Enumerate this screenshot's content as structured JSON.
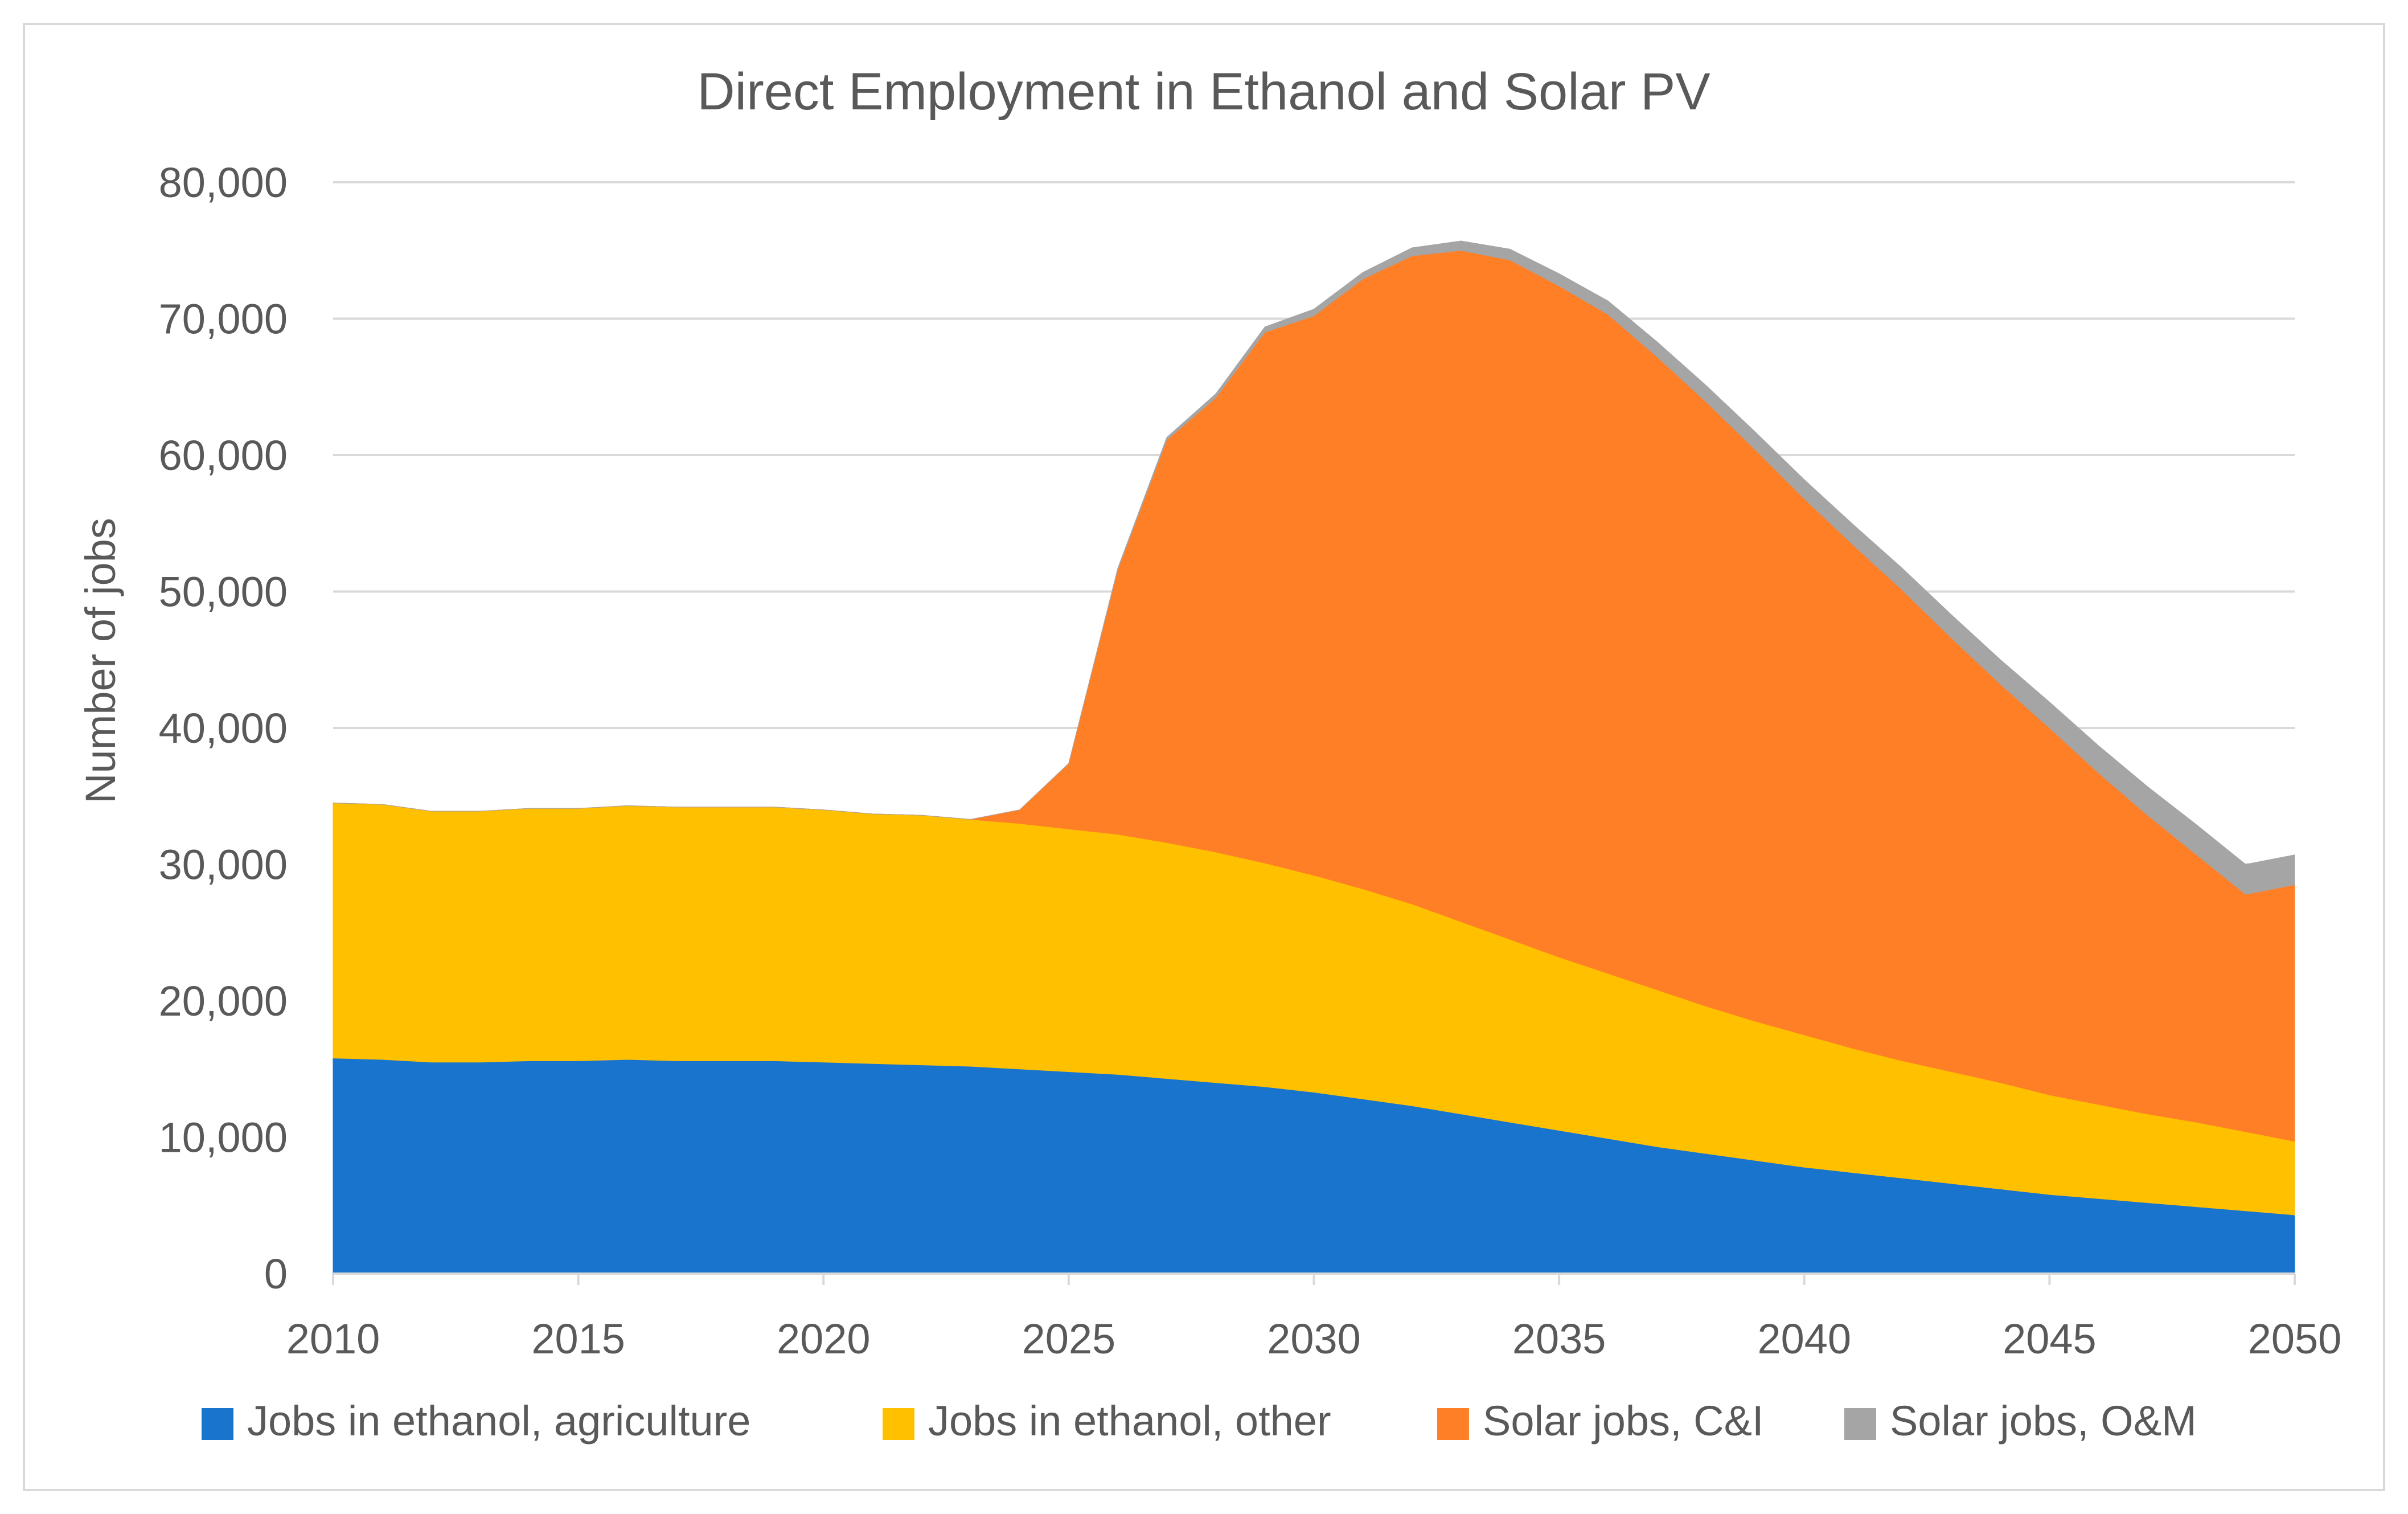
{
  "chart_data": {
    "type": "area",
    "stacked": true,
    "title": "Direct Employment in Ethanol and Solar PV",
    "xlabel": "",
    "ylabel": "Number of jobs",
    "xlim": [
      2010,
      2050
    ],
    "ylim": [
      0,
      80000
    ],
    "x_ticks": [
      "2010",
      "2015",
      "2020",
      "2025",
      "2030",
      "2035",
      "2040",
      "2045",
      "2050"
    ],
    "y_ticks": [
      "0",
      "10,000",
      "20,000",
      "30,000",
      "40,000",
      "50,000",
      "60,000",
      "70,000",
      "80,000"
    ],
    "grid": true,
    "legend_position": "bottom",
    "x": [
      2010,
      2011,
      2012,
      2013,
      2014,
      2015,
      2016,
      2017,
      2018,
      2019,
      2020,
      2021,
      2022,
      2023,
      2024,
      2025,
      2026,
      2027,
      2028,
      2029,
      2030,
      2031,
      2032,
      2033,
      2034,
      2035,
      2036,
      2037,
      2038,
      2039,
      2040,
      2041,
      2042,
      2043,
      2044,
      2045,
      2046,
      2047,
      2048,
      2049,
      2050
    ],
    "series": [
      {
        "name": "Jobs in ethanol, agriculture",
        "color": "#1874CD",
        "values": [
          15800,
          15700,
          15500,
          15500,
          15600,
          15600,
          15700,
          15600,
          15600,
          15600,
          15500,
          15400,
          15300,
          15200,
          15000,
          14800,
          14600,
          14300,
          14000,
          13700,
          13300,
          12800,
          12300,
          11700,
          11100,
          10500,
          9900,
          9300,
          8800,
          8300,
          7800,
          7400,
          7000,
          6600,
          6200,
          5800,
          5500,
          5200,
          4900,
          4600,
          4300
        ]
      },
      {
        "name": "Jobs in ethanol, other",
        "color": "#FFC000",
        "values": [
          18700,
          18700,
          18400,
          18400,
          18500,
          18500,
          18600,
          18600,
          18600,
          18600,
          18500,
          18300,
          18300,
          18100,
          18000,
          17800,
          17600,
          17300,
          16900,
          16400,
          15900,
          15400,
          14800,
          14100,
          13400,
          12700,
          12100,
          11500,
          10800,
          10200,
          9700,
          9100,
          8600,
          8200,
          7800,
          7300,
          6900,
          6500,
          6200,
          5800,
          5400
        ]
      },
      {
        "name": "Solar jobs, C&I",
        "color": "#FF7F27",
        "values": [
          0,
          0,
          0,
          0,
          0,
          0,
          0,
          0,
          0,
          0,
          0,
          0,
          0,
          0,
          1000,
          4800,
          19400,
          29500,
          33300,
          38900,
          41000,
          44700,
          47500,
          49200,
          49800,
          49200,
          48300,
          46400,
          44300,
          41900,
          39300,
          36900,
          34500,
          31800,
          29200,
          26900,
          24300,
          21900,
          19600,
          17400,
          18800
        ]
      },
      {
        "name": "Solar jobs, O&M",
        "color": "#A5A5A5",
        "values": [
          0,
          0,
          0,
          0,
          0,
          0,
          0,
          0,
          0,
          0,
          0,
          0,
          0,
          0,
          0,
          0,
          100,
          200,
          300,
          400,
          500,
          500,
          600,
          700,
          800,
          900,
          1000,
          1100,
          1200,
          1300,
          1400,
          1500,
          1600,
          1700,
          1800,
          1900,
          2000,
          2100,
          2200,
          2200,
          2200
        ]
      }
    ]
  }
}
